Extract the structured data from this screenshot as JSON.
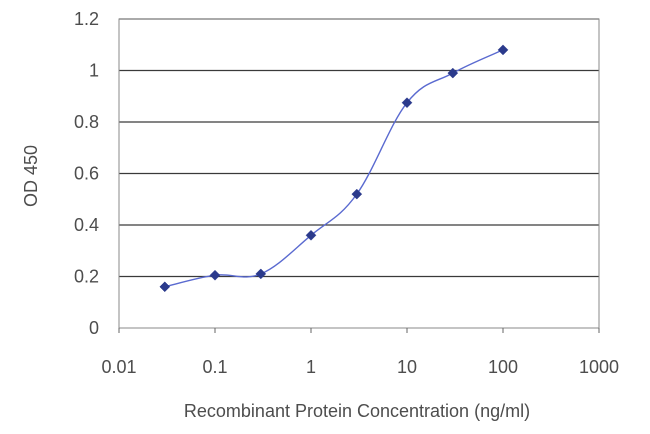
{
  "chart_data": {
    "type": "line",
    "title": "",
    "xlabel": "Recombinant Protein Concentration (ng/ml)",
    "ylabel": "OD 450",
    "x_scale": "log",
    "xlim": [
      0.01,
      1000
    ],
    "ylim": [
      0,
      1.2
    ],
    "x_ticks": [
      {
        "value": 0.01,
        "label": "0.01"
      },
      {
        "value": 0.1,
        "label": "0.1"
      },
      {
        "value": 1,
        "label": "1"
      },
      {
        "value": 10,
        "label": "10"
      },
      {
        "value": 100,
        "label": "100"
      },
      {
        "value": 1000,
        "label": "1000"
      }
    ],
    "y_ticks": [
      {
        "value": 0,
        "label": "0"
      },
      {
        "value": 0.2,
        "label": "0.2"
      },
      {
        "value": 0.4,
        "label": "0.4"
      },
      {
        "value": 0.6,
        "label": "0.6"
      },
      {
        "value": 0.8,
        "label": "0.8"
      },
      {
        "value": 1,
        "label": "1"
      },
      {
        "value": 1.2,
        "label": "1.2"
      }
    ],
    "grid": "horizontal",
    "legend": "none",
    "series": [
      {
        "color": "#2b3a8c",
        "marker": "diamond",
        "points": [
          {
            "x": 0.03,
            "y": 0.16
          },
          {
            "x": 0.1,
            "y": 0.205
          },
          {
            "x": 0.3,
            "y": 0.21
          },
          {
            "x": 1,
            "y": 0.36
          },
          {
            "x": 3,
            "y": 0.52
          },
          {
            "x": 10,
            "y": 0.875
          },
          {
            "x": 30,
            "y": 0.99
          },
          {
            "x": 100,
            "y": 1.08
          }
        ]
      }
    ]
  }
}
